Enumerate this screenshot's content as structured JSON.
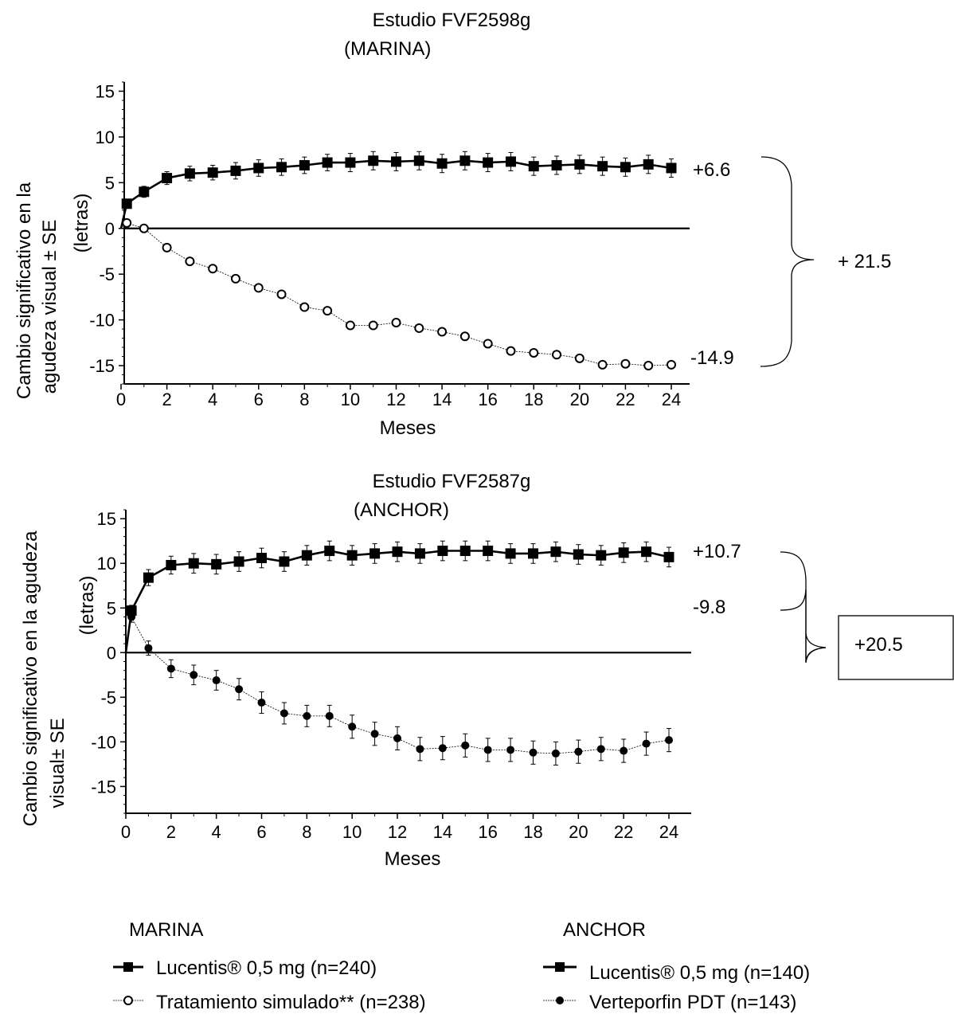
{
  "chart_data": [
    {
      "type": "line",
      "title": "Estudio FVF2598g",
      "subtitle": "(MARINA)",
      "xlabel": "Meses",
      "ylabel_line1": "Cambio significativo en la",
      "ylabel_line2": "agudeza visual ± SE",
      "ylabel_line3": "(letras)",
      "xlim": [
        0,
        24
      ],
      "ylim": [
        -17,
        16
      ],
      "x_ticks": [
        0,
        2,
        4,
        6,
        8,
        10,
        12,
        14,
        16,
        18,
        20,
        22,
        24
      ],
      "y_ticks": [
        15,
        10,
        5,
        0,
        -5,
        -10,
        -15
      ],
      "series": [
        {
          "name": "Lucentis® 0,5 mg (n=240)",
          "marker": "square",
          "x": [
            0.25,
            1,
            2,
            3,
            4,
            5,
            6,
            7,
            8,
            9,
            10,
            11,
            12,
            13,
            14,
            15,
            16,
            17,
            18,
            19,
            20,
            21,
            22,
            23,
            24
          ],
          "values": [
            2.7,
            4.0,
            5.5,
            6.0,
            6.1,
            6.3,
            6.6,
            6.7,
            6.9,
            7.2,
            7.2,
            7.4,
            7.3,
            7.4,
            7.1,
            7.4,
            7.2,
            7.3,
            6.8,
            6.9,
            7.0,
            6.8,
            6.7,
            7.0,
            6.6
          ],
          "se": [
            0.5,
            0.6,
            0.7,
            0.8,
            0.8,
            0.9,
            0.9,
            0.9,
            0.9,
            0.9,
            1.0,
            1.0,
            1.0,
            1.0,
            1.0,
            1.0,
            1.0,
            1.0,
            1.0,
            1.0,
            1.0,
            1.0,
            1.0,
            1.0,
            1.0
          ]
        },
        {
          "name": "Tratamiento simulado** (n=238)",
          "marker": "open-circle",
          "x": [
            0.25,
            1,
            2,
            3,
            4,
            5,
            6,
            7,
            8,
            9,
            10,
            11,
            12,
            13,
            14,
            15,
            16,
            17,
            18,
            19,
            20,
            21,
            22,
            23,
            24
          ],
          "values": [
            0.6,
            0.0,
            -2.1,
            -3.6,
            -4.4,
            -5.5,
            -6.5,
            -7.2,
            -8.6,
            -9.0,
            -10.6,
            -10.6,
            -10.3,
            -10.9,
            -11.3,
            -11.8,
            -12.6,
            -13.4,
            -13.6,
            -13.8,
            -14.2,
            -14.9,
            -14.8,
            -15.0,
            -14.9
          ]
        }
      ],
      "annotations": {
        "top_value": "+6.6",
        "bottom_value": "-14.9",
        "difference": "+ 21.5"
      }
    },
    {
      "type": "line",
      "title": "Estudio FVF2587g",
      "subtitle": "(ANCHOR)",
      "xlabel": "Meses",
      "ylabel_line1": "Cambio significativo en la agudeza",
      "ylabel_line2": "visual± SE",
      "ylabel_line3": "(letras)",
      "xlim": [
        0,
        24
      ],
      "ylim": [
        -18,
        16
      ],
      "x_ticks": [
        0,
        2,
        4,
        6,
        8,
        10,
        12,
        14,
        16,
        18,
        20,
        22,
        24
      ],
      "y_ticks": [
        15,
        10,
        5,
        0,
        -5,
        -10,
        -15
      ],
      "series": [
        {
          "name": "Lucentis® 0,5 mg (n=140)",
          "marker": "square",
          "x": [
            0.25,
            1,
            2,
            3,
            4,
            5,
            6,
            7,
            8,
            9,
            10,
            11,
            12,
            13,
            14,
            15,
            16,
            17,
            18,
            19,
            20,
            21,
            22,
            23,
            24
          ],
          "values": [
            4.7,
            8.4,
            9.8,
            10.0,
            9.9,
            10.2,
            10.6,
            10.2,
            10.9,
            11.4,
            10.9,
            11.1,
            11.3,
            11.1,
            11.4,
            11.4,
            11.4,
            11.1,
            11.1,
            11.3,
            11.0,
            10.9,
            11.2,
            11.3,
            10.7
          ],
          "se": [
            0.6,
            0.9,
            1.0,
            1.1,
            1.1,
            1.1,
            1.1,
            1.1,
            1.1,
            1.1,
            1.1,
            1.1,
            1.1,
            1.1,
            1.1,
            1.1,
            1.1,
            1.1,
            1.1,
            1.1,
            1.1,
            1.1,
            1.1,
            1.1,
            1.1
          ]
        },
        {
          "name": "Verteporfin PDT (n=143)",
          "marker": "filled-circle",
          "x": [
            0.25,
            1,
            2,
            3,
            4,
            5,
            6,
            7,
            8,
            9,
            10,
            11,
            12,
            13,
            14,
            15,
            16,
            17,
            18,
            19,
            20,
            21,
            22,
            23,
            24
          ],
          "values": [
            4.0,
            0.5,
            -1.8,
            -2.5,
            -3.1,
            -4.1,
            -5.6,
            -6.8,
            -7.1,
            -7.1,
            -8.3,
            -9.1,
            -9.6,
            -10.8,
            -10.7,
            -10.4,
            -10.9,
            -10.9,
            -11.2,
            -11.3,
            -11.1,
            -10.8,
            -11.0,
            -10.2,
            -9.8
          ],
          "se": [
            0.6,
            0.8,
            1.0,
            1.1,
            1.1,
            1.2,
            1.2,
            1.2,
            1.2,
            1.2,
            1.3,
            1.3,
            1.3,
            1.3,
            1.3,
            1.3,
            1.3,
            1.3,
            1.3,
            1.3,
            1.3,
            1.3,
            1.3,
            1.3,
            1.3
          ]
        }
      ],
      "annotations": {
        "top_value": "+10.7",
        "bottom_value": "-9.8",
        "difference": "+20.5"
      }
    }
  ],
  "legend": {
    "marina_heading": "MARINA",
    "anchor_heading": "ANCHOR",
    "marina_items": [
      "Lucentis® 0,5 mg (n=240)",
      "Tratamiento simulado** (n=238)"
    ],
    "anchor_items": [
      "Lucentis® 0,5 mg (n=140)",
      "Verteporfin PDT (n=143)"
    ]
  }
}
